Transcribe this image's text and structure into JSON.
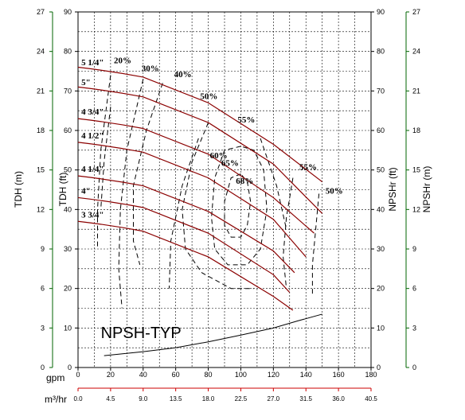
{
  "chart_data": {
    "type": "line",
    "title": "",
    "x_axis": {
      "label": "gpm",
      "range": [
        0,
        180
      ],
      "ticks": [
        0,
        20,
        40,
        60,
        80,
        100,
        120,
        140,
        160,
        180
      ],
      "secondary_label": "m³/hr",
      "secondary_ticks": [
        "0.0",
        "4.5",
        "9.0",
        "13.5",
        "18.0",
        "22.5",
        "27.0",
        "31.5",
        "36.0",
        "40.5"
      ]
    },
    "y_axes": {
      "tdh_ft": {
        "label": "TDH (ft)",
        "range": [
          0,
          90
        ],
        "ticks": [
          0,
          10,
          20,
          30,
          40,
          50,
          60,
          70,
          80,
          90
        ]
      },
      "tdh_m": {
        "label": "TDH (m)",
        "range": [
          0,
          27
        ],
        "ticks": [
          0,
          3,
          6,
          9,
          12,
          15,
          18,
          21,
          24,
          27
        ]
      },
      "npshr_ft": {
        "label": "NPSHr (ft)",
        "range": [
          0,
          90
        ],
        "ticks": [
          0,
          10,
          20,
          30,
          40,
          50,
          60,
          70,
          80,
          90
        ]
      },
      "npshr_m": {
        "label": "NPSHr (m)",
        "range": [
          0,
          27
        ],
        "ticks": [
          0,
          3,
          6,
          9,
          12,
          15,
          18,
          21,
          24,
          27
        ]
      }
    },
    "grid": true,
    "impeller_curves": [
      {
        "name": "5 1/4\"",
        "points": [
          [
            0,
            76
          ],
          [
            40,
            73.5
          ],
          [
            80,
            67
          ],
          [
            120,
            56.5
          ],
          [
            150,
            47
          ]
        ]
      },
      {
        "name": "5\"",
        "points": [
          [
            0,
            71
          ],
          [
            40,
            68.5
          ],
          [
            80,
            62
          ],
          [
            120,
            51.5
          ],
          [
            150,
            39
          ]
        ]
      },
      {
        "name": "4 3/4\"",
        "points": [
          [
            0,
            63
          ],
          [
            40,
            60.5
          ],
          [
            80,
            54
          ],
          [
            120,
            43
          ],
          [
            145,
            34
          ]
        ]
      },
      {
        "name": "4 1/2\"",
        "points": [
          [
            0,
            57
          ],
          [
            40,
            54.5
          ],
          [
            80,
            48
          ],
          [
            120,
            37.5
          ],
          [
            140,
            28
          ]
        ]
      },
      {
        "name": "4 1/4\"",
        "points": [
          [
            0,
            48.5
          ],
          [
            40,
            46
          ],
          [
            80,
            39.5
          ],
          [
            120,
            29.5
          ],
          [
            133,
            24
          ]
        ]
      },
      {
        "name": "4\"",
        "points": [
          [
            0,
            43
          ],
          [
            40,
            40.5
          ],
          [
            80,
            34
          ],
          [
            120,
            23.5
          ],
          [
            130,
            19
          ]
        ]
      },
      {
        "name": "3 3/4\"",
        "points": [
          [
            0,
            37
          ],
          [
            40,
            34.5
          ],
          [
            80,
            28
          ],
          [
            120,
            18
          ],
          [
            132,
            14.5
          ]
        ]
      }
    ],
    "efficiency_labels": [
      "20%",
      "30%",
      "40%",
      "50%",
      "55%",
      "60%",
      "65%",
      "68%",
      "55%",
      "50%"
    ],
    "npsh_label": "NPSH-TYP",
    "npsh_curve": [
      [
        16,
        3
      ],
      [
        40,
        4
      ],
      [
        60,
        5
      ],
      [
        80,
        6.5
      ],
      [
        100,
        8.2
      ],
      [
        120,
        10
      ],
      [
        135,
        11.8
      ],
      [
        150,
        13.5
      ]
    ]
  }
}
